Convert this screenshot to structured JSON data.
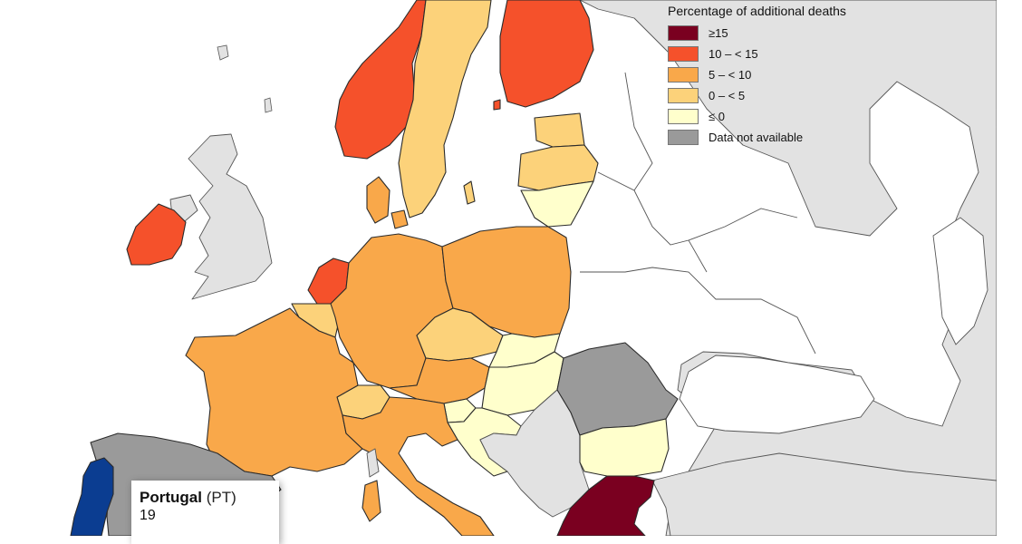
{
  "legend": {
    "title": "Percentage of additional deaths",
    "items": [
      {
        "label": "≥15",
        "color": "#7a0020"
      },
      {
        "label": "10 – < 15",
        "color": "#f5512b"
      },
      {
        "label": "5 – < 10",
        "color": "#f9a84a"
      },
      {
        "label": "0 – < 5",
        "color": "#fcd27a"
      },
      {
        "label": "≤ 0",
        "color": "#ffffcc"
      },
      {
        "label": "Data not available",
        "color": "#9a9a9a"
      }
    ]
  },
  "tooltip": {
    "name": "Portugal",
    "code": "(PT)",
    "value": "19"
  },
  "colors": {
    "background_land": "#e2e2e2",
    "sea": "#ffffff",
    "selected": "#0b3d91"
  },
  "countries": [
    {
      "name": "Norway",
      "class": "10 – < 15"
    },
    {
      "name": "Sweden",
      "class": "0 – < 5"
    },
    {
      "name": "Finland",
      "class": "10 – < 15"
    },
    {
      "name": "Estonia",
      "class": "0 – < 5"
    },
    {
      "name": "Latvia",
      "class": "0 – < 5"
    },
    {
      "name": "Lithuania",
      "class": "≤ 0"
    },
    {
      "name": "Ireland",
      "class": "10 – < 15"
    },
    {
      "name": "Netherlands",
      "class": "10 – < 15"
    },
    {
      "name": "Belgium",
      "class": "0 – < 5"
    },
    {
      "name": "Germany",
      "class": "5 – < 10"
    },
    {
      "name": "Denmark",
      "class": "5 – < 10"
    },
    {
      "name": "Poland",
      "class": "5 – < 10"
    },
    {
      "name": "France",
      "class": "5 – < 10"
    },
    {
      "name": "Czechia",
      "class": "0 – < 5"
    },
    {
      "name": "Slovakia",
      "class": "≤ 0"
    },
    {
      "name": "Austria",
      "class": "5 – < 10"
    },
    {
      "name": "Switzerland",
      "class": "0 – < 5"
    },
    {
      "name": "Hungary",
      "class": "≤ 0"
    },
    {
      "name": "Slovenia",
      "class": "≤ 0"
    },
    {
      "name": "Croatia",
      "class": "≤ 0"
    },
    {
      "name": "Italy",
      "class": "5 – < 10"
    },
    {
      "name": "Romania",
      "class": "Data not available"
    },
    {
      "name": "Bulgaria",
      "class": "≤ 0"
    },
    {
      "name": "Greece",
      "class": "≥15"
    },
    {
      "name": "Spain",
      "class": "Data not available"
    },
    {
      "name": "Portugal",
      "class": "selected"
    }
  ]
}
